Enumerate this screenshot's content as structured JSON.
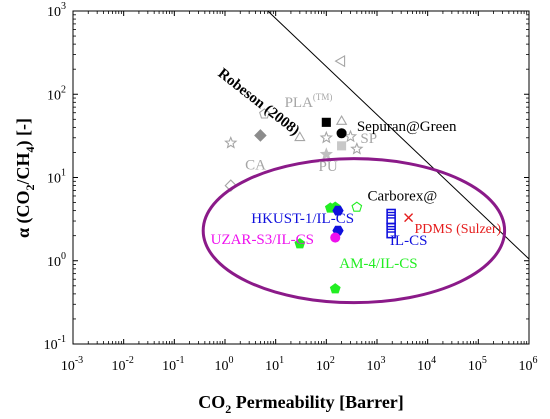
{
  "chart_data": {
    "type": "scatter",
    "xlabel_main": "CO",
    "xlabel_sub": "2",
    "xlabel_rest": " Permeability [Barrer]",
    "ylabel_pre": "α (CO",
    "ylabel_sub1": "2",
    "ylabel_mid": "/CH",
    "ylabel_sub2": "4",
    "ylabel_rest": ") [-]",
    "x_scale": "log",
    "y_scale": "log",
    "xlim": [
      0.001,
      1000000
    ],
    "ylim": [
      0.1,
      1000
    ],
    "x_ticks": [
      {
        "value": 0.001,
        "base": "10",
        "exp": "-3"
      },
      {
        "value": 0.01,
        "base": "10",
        "exp": "-2"
      },
      {
        "value": 0.1,
        "base": "10",
        "exp": "-1"
      },
      {
        "value": 1,
        "base": "10",
        "exp": "0"
      },
      {
        "value": 10,
        "base": "10",
        "exp": "1"
      },
      {
        "value": 100,
        "base": "10",
        "exp": "2"
      },
      {
        "value": 1000,
        "base": "10",
        "exp": "3"
      },
      {
        "value": 10000,
        "base": "10",
        "exp": "4"
      },
      {
        "value": 100000,
        "base": "10",
        "exp": "5"
      },
      {
        "value": 1000000,
        "base": "10",
        "exp": "6"
      }
    ],
    "y_ticks": [
      {
        "value": 0.1,
        "base": "10",
        "exp": "-1"
      },
      {
        "value": 1,
        "base": "10",
        "exp": "0"
      },
      {
        "value": 10,
        "base": "10",
        "exp": "1"
      },
      {
        "value": 100,
        "base": "10",
        "exp": "2"
      },
      {
        "value": 1000,
        "base": "10",
        "exp": "3"
      }
    ],
    "robeson": {
      "label": "Robeson (2008)",
      "line": [
        [
          7,
          1000
        ],
        [
          1000000,
          1.05
        ]
      ],
      "label_anchor": [
        0.7,
        170
      ],
      "label_rotation": 38
    },
    "ellipse": {
      "center": [
        350,
        2.3
      ],
      "x_span": [
        0.45,
        400000
      ],
      "y_span": [
        0.27,
        14.5
      ],
      "color": "#8b1a89"
    },
    "points": [
      {
        "x": 200,
        "y": 250,
        "marker": "triangle-left",
        "color": "#a6a6a6",
        "filled": false
      },
      {
        "x": 6,
        "y": 58,
        "marker": "pentagon",
        "color": "#a6a6a6",
        "filled": false
      },
      {
        "x": 200,
        "y": 47,
        "marker": "triangle",
        "color": "#a6a6a6",
        "filled": false
      },
      {
        "x": 30,
        "y": 30,
        "marker": "triangle",
        "color": "#a6a6a6",
        "filled": false
      },
      {
        "x": 100,
        "y": 30,
        "marker": "star",
        "color": "#a6a6a6",
        "filled": false
      },
      {
        "x": 300,
        "y": 31,
        "marker": "star",
        "color": "#a6a6a6",
        "filled": false
      },
      {
        "x": 1.3,
        "y": 26,
        "marker": "star",
        "color": "#a6a6a6",
        "filled": false
      },
      {
        "x": 5,
        "y": 32,
        "marker": "diamond",
        "color": "#8c8c8c",
        "filled": true
      },
      {
        "x": 100,
        "y": 19,
        "marker": "star",
        "color": "#c0c0c0",
        "filled": true
      },
      {
        "x": 200,
        "y": 24,
        "marker": "square",
        "color": "#c8c8c8",
        "filled": true
      },
      {
        "x": 400,
        "y": 22,
        "marker": "star",
        "color": "#a6a6a6",
        "filled": false
      },
      {
        "x": 1.3,
        "y": 8,
        "marker": "diamond",
        "color": "#a6a6a6",
        "filled": false
      },
      {
        "x": 100,
        "y": 46,
        "marker": "square",
        "color": "#000000",
        "filled": true
      },
      {
        "x": 200,
        "y": 34,
        "marker": "circle",
        "color": "#000000",
        "filled": true
      },
      {
        "x": 150,
        "y": 4.4,
        "marker": "pentagon",
        "color": "#22ee22",
        "filled": true
      },
      {
        "x": 120,
        "y": 4.3,
        "marker": "pentagon",
        "color": "#22ee22",
        "filled": true
      },
      {
        "x": 400,
        "y": 4.4,
        "marker": "pentagon",
        "color": "#22ee22",
        "filled": false
      },
      {
        "x": 30,
        "y": 1.6,
        "marker": "pentagon",
        "color": "#22ee22",
        "filled": true
      },
      {
        "x": 150,
        "y": 0.46,
        "marker": "pentagon",
        "color": "#22ee22",
        "filled": true
      },
      {
        "x": 170,
        "y": 4.0,
        "marker": "hexagon",
        "color": "#1010dd",
        "filled": true
      },
      {
        "x": 170,
        "y": 2.3,
        "marker": "hexagon",
        "color": "#1010dd",
        "filled": true
      },
      {
        "x": 150,
        "y": 1.9,
        "marker": "circle",
        "color": "#ee10ee",
        "filled": true
      },
      {
        "x": 1900,
        "y": 3.4,
        "marker": "rect-hatch",
        "color": "#1010dd",
        "filled": false
      },
      {
        "x": 1900,
        "y": 2.3,
        "marker": "rect-hatch",
        "color": "#1010dd",
        "filled": false
      },
      {
        "x": 4200,
        "y": 3.3,
        "marker": "cross",
        "color": "#e51c1c",
        "filled": false
      }
    ],
    "annotations": [
      {
        "text": "PLA",
        "sup": "(TM)",
        "x": 15,
        "y": 70,
        "color": "#a6a6a6",
        "size": 15
      },
      {
        "text": "CA",
        "x": 2.5,
        "y": 12.5,
        "color": "#a6a6a6",
        "size": 15
      },
      {
        "text": "PU",
        "x": 70,
        "y": 12,
        "color": "#a6a6a6",
        "size": 15
      },
      {
        "text": "SP",
        "x": 470,
        "y": 26,
        "color": "#a6a6a6",
        "size": 15
      },
      {
        "text": "Sepuran@Green",
        "x": 400,
        "y": 36,
        "color": "#000000",
        "size": 15
      },
      {
        "text": "Carborex@",
        "x": 650,
        "y": 5.3,
        "color": "#000000",
        "size": 15
      },
      {
        "text": "HKUST-1/IL-CS",
        "x": 3.3,
        "y": 2.85,
        "color": "#1010dd",
        "size": 15
      },
      {
        "text": "UZAR-S3/IL-CS",
        "x": 0.52,
        "y": 1.58,
        "color": "#ee10ee",
        "size": 15
      },
      {
        "text": "IL-CS",
        "x": 1800,
        "y": 1.55,
        "color": "#1010dd",
        "size": 15
      },
      {
        "text": "PDMS (Sulzer)",
        "x": 5500,
        "y": 2.15,
        "color": "#e51c1c",
        "size": 14
      },
      {
        "text": "AM-4/IL-CS",
        "x": 180,
        "y": 0.82,
        "color": "#22ee22",
        "size": 15
      }
    ]
  }
}
